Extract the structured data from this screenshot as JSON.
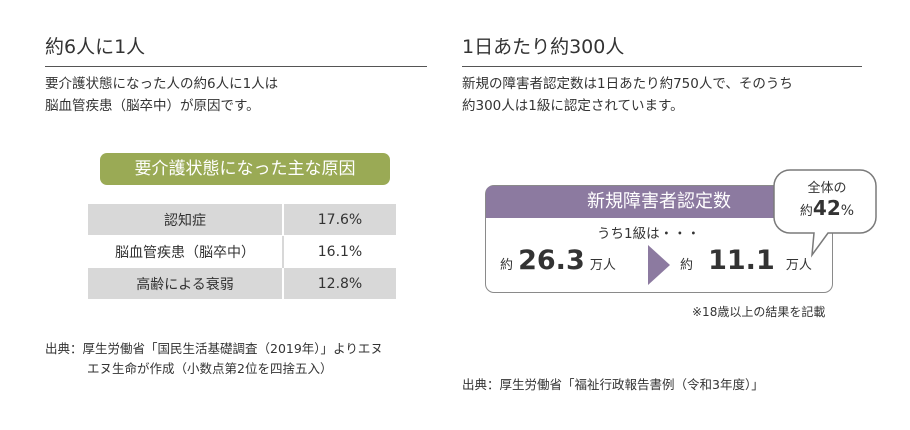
{
  "left": {
    "heading": "約6人に1人",
    "lines": [
      "要介護状態になった人の約6人に1人は",
      "脳血管疾患（脳卒中）が原因です。"
    ],
    "pill": "要介護状態になった主な原因",
    "rows": [
      {
        "label": "認知症",
        "value": "17.6%"
      },
      {
        "label": "脳血管疾患（脳卒中）",
        "value": "16.1%"
      },
      {
        "label": "高齢による衰弱",
        "value": "12.8%"
      }
    ],
    "source_line1": "出典：厚生労働省「国民生活基礎調査（2019年）」よりエヌ",
    "source_line2": "エヌ生命が作成（小数点第2位を四捨五入）"
  },
  "right": {
    "heading": "1日あたり約300人",
    "lines": [
      "新規の障害者認定数は1日あたり約750人で、そのうち",
      "約300人は1級に認定されています。"
    ],
    "card_title": "新規障害者認定数",
    "sub_label": "うち1級は・・・",
    "left_prefix": "約",
    "left_value": "26.3",
    "left_unit": "万人",
    "right_prefix": "約",
    "right_value": "11.1",
    "right_unit": "万人",
    "bubble_line1": "全体の",
    "bubble_prefix": "約",
    "bubble_value": "42",
    "bubble_unit": "%",
    "note": "※18歳以上の結果を記載",
    "source": "出典：厚生労働省「福祉行政報告書例（令和3年度）」"
  },
  "colors": {
    "pill": "#9aaa55",
    "card_head": "#8c7aa0",
    "arrow": "#8c7aa0",
    "table_shade": "#d8d8d8"
  }
}
